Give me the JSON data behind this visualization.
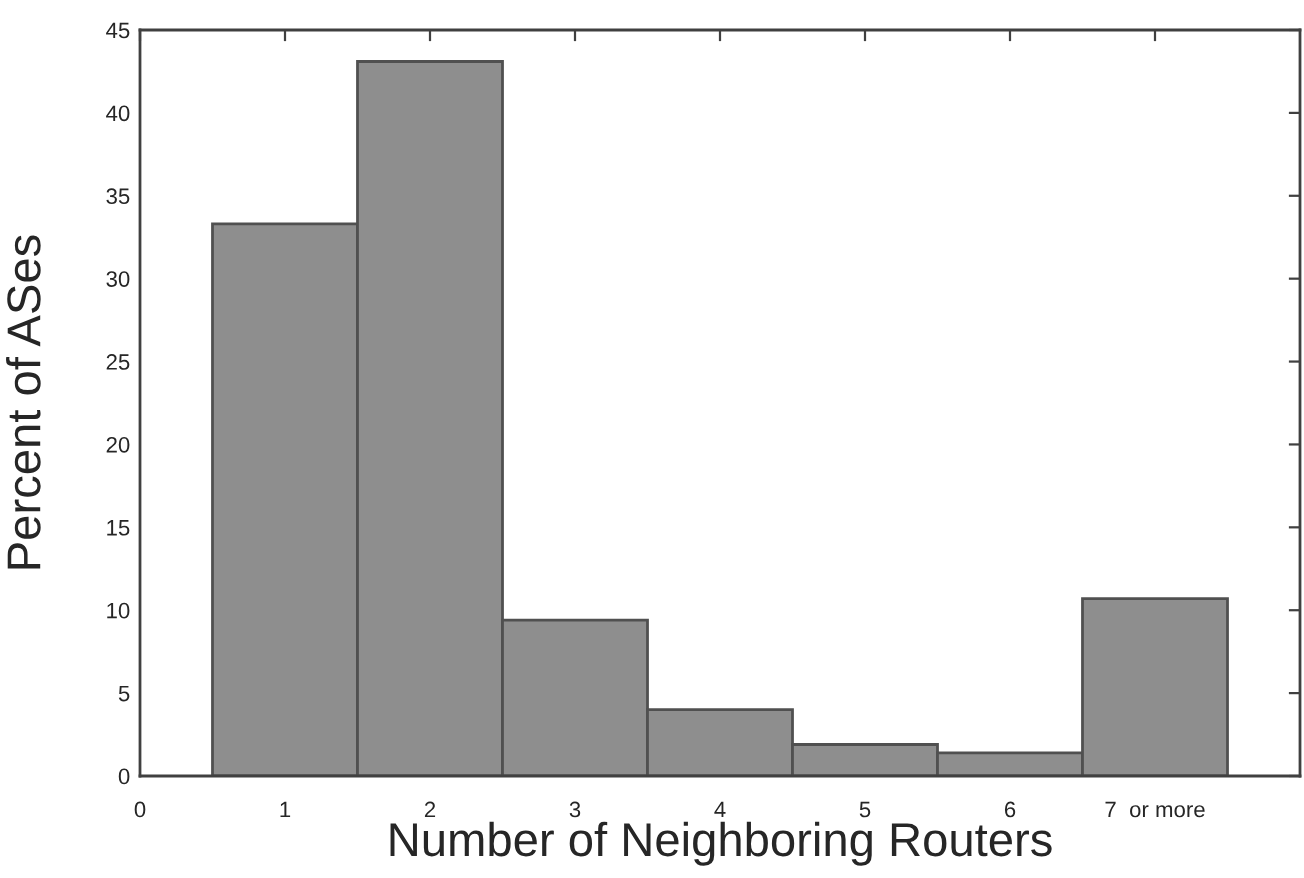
{
  "chart_data": {
    "type": "histogram",
    "xlabel": "Number of Neighboring Routers",
    "ylabel": "Percent of ASes",
    "bins": [
      0.5,
      1.5,
      2.5,
      3.5,
      4.5,
      5.5,
      6.5,
      7.5
    ],
    "values": [
      33.3,
      43.1,
      9.4,
      4.0,
      1.9,
      1.4,
      10.7
    ],
    "color": "#8e8e8e",
    "xlim": [
      0,
      8
    ],
    "xticks": [
      0,
      1,
      2,
      3,
      4,
      5,
      6,
      {
        "value": 7,
        "label": "7  or more"
      }
    ],
    "ylim": [
      0,
      45
    ],
    "yticks": [
      0,
      5,
      10,
      15,
      20,
      25,
      30,
      35,
      40,
      45
    ],
    "grid": false
  }
}
